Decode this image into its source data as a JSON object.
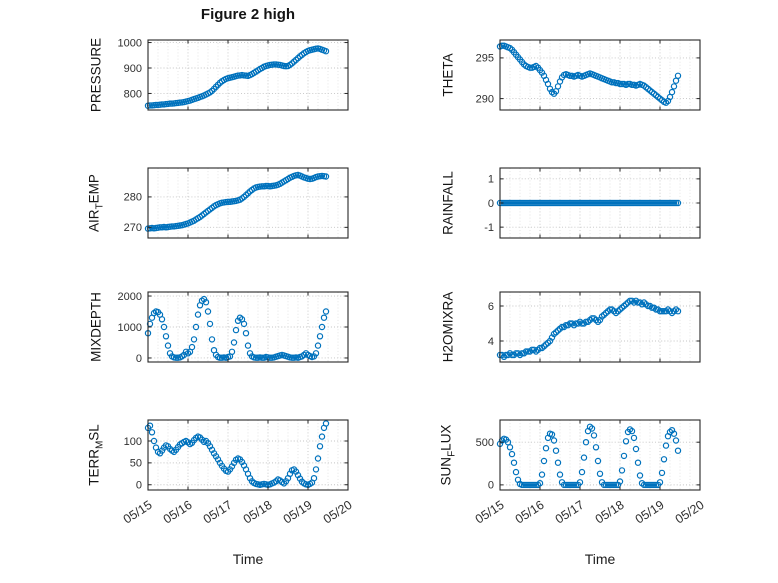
{
  "title": "Figure 2 high",
  "xlabel": "Time",
  "accent_color": "#0072BD",
  "x_tick_labels": [
    "05/15",
    "05/16",
    "05/17",
    "05/18",
    "05/19",
    "05/20"
  ],
  "x_axis": {
    "lim": [
      0,
      5
    ],
    "ticks": [
      0,
      1,
      2,
      3,
      4,
      5
    ],
    "minor_step": 0.25
  },
  "x_days": [
    0,
    0.05,
    0.1,
    0.15,
    0.2,
    0.25,
    0.3,
    0.35,
    0.4,
    0.45,
    0.5,
    0.55,
    0.6,
    0.65,
    0.7,
    0.75,
    0.8,
    0.85,
    0.9,
    0.95,
    1,
    1.05,
    1.1,
    1.15,
    1.2,
    1.25,
    1.3,
    1.35,
    1.4,
    1.45,
    1.5,
    1.55,
    1.6,
    1.65,
    1.7,
    1.75,
    1.8,
    1.85,
    1.9,
    1.95,
    2,
    2.05,
    2.1,
    2.15,
    2.2,
    2.25,
    2.3,
    2.35,
    2.4,
    2.45,
    2.5,
    2.55,
    2.6,
    2.65,
    2.7,
    2.75,
    2.8,
    2.85,
    2.9,
    2.95,
    3,
    3.05,
    3.1,
    3.15,
    3.2,
    3.25,
    3.3,
    3.35,
    3.4,
    3.45,
    3.5,
    3.55,
    3.6,
    3.65,
    3.7,
    3.75,
    3.8,
    3.85,
    3.9,
    3.95,
    4,
    4.05,
    4.1,
    4.15,
    4.2,
    4.25,
    4.3,
    4.35,
    4.4,
    4.45
  ],
  "chart_data": [
    {
      "type": "scatter",
      "marker": "circle-open",
      "label": "PRESSURE",
      "ylabel_parts": {
        "pre": "PRESSURE",
        "sub": "",
        "post": ""
      },
      "ylim": [
        735,
        1010
      ],
      "yticks": [
        800,
        900,
        1000
      ],
      "y": [
        752,
        753,
        753,
        754,
        755,
        755,
        756,
        757,
        757,
        758,
        759,
        760,
        760,
        761,
        762,
        763,
        764,
        765,
        766,
        768,
        770,
        772,
        775,
        778,
        780,
        783,
        786,
        789,
        792,
        796,
        800,
        804,
        810,
        818,
        826,
        834,
        842,
        848,
        853,
        857,
        860,
        862,
        864,
        866,
        868,
        870,
        871,
        872,
        871,
        870,
        869,
        872,
        876,
        881,
        886,
        891,
        896,
        900,
        905,
        908,
        910,
        912,
        913,
        914,
        914,
        913,
        912,
        910,
        908,
        907,
        908,
        912,
        918,
        925,
        932,
        939,
        946,
        952,
        958,
        963,
        967,
        970,
        972,
        974,
        976,
        977,
        975,
        972,
        969,
        966
      ]
    },
    {
      "type": "scatter",
      "marker": "circle-open",
      "label": "THETA",
      "ylabel_parts": {
        "pre": "THETA",
        "sub": "",
        "post": ""
      },
      "ylim": [
        288.6,
        297.2
      ],
      "yticks": [
        290,
        295
      ],
      "y": [
        296.4,
        296.5,
        296.5,
        296.4,
        296.3,
        296.2,
        296.0,
        295.7,
        295.4,
        295.1,
        294.8,
        294.5,
        294.2,
        294.0,
        293.9,
        293.8,
        293.8,
        293.9,
        294.0,
        293.8,
        293.5,
        293.2,
        292.8,
        292.3,
        291.8,
        291.2,
        290.8,
        290.6,
        290.9,
        291.5,
        292.1,
        292.6,
        292.9,
        293.0,
        292.9,
        292.8,
        292.8,
        292.7,
        292.8,
        292.9,
        292.8,
        292.7,
        292.8,
        292.9,
        293.0,
        293.1,
        293.0,
        292.9,
        292.8,
        292.7,
        292.6,
        292.5,
        292.4,
        292.3,
        292.2,
        292.1,
        292.0,
        292.0,
        291.9,
        291.9,
        291.8,
        291.8,
        291.8,
        291.7,
        291.8,
        291.8,
        291.7,
        291.7,
        291.6,
        291.7,
        291.8,
        291.7,
        291.6,
        291.4,
        291.2,
        291.0,
        290.8,
        290.6,
        290.4,
        290.2,
        290.0,
        289.8,
        289.6,
        289.5,
        289.7,
        290.2,
        290.8,
        291.5,
        292.2,
        292.8
      ]
    },
    {
      "type": "scatter",
      "marker": "circle-open",
      "label": "AIR_TEMP",
      "ylabel_parts": {
        "pre": "AIR",
        "sub": "T",
        "post": "EMP"
      },
      "ylim": [
        266.5,
        289.5
      ],
      "yticks": [
        270,
        280
      ],
      "y": [
        269.6,
        269.7,
        269.8,
        269.7,
        269.8,
        269.9,
        270.0,
        270.0,
        270.1,
        270.0,
        270.1,
        270.2,
        270.3,
        270.3,
        270.4,
        270.5,
        270.6,
        270.7,
        270.9,
        271.1,
        271.3,
        271.6,
        271.9,
        272.2,
        272.6,
        273.0,
        273.4,
        273.9,
        274.4,
        274.9,
        275.4,
        275.9,
        276.4,
        276.9,
        277.3,
        277.6,
        277.9,
        278.1,
        278.2,
        278.3,
        278.4,
        278.4,
        278.5,
        278.6,
        278.7,
        278.9,
        279.1,
        279.5,
        280.0,
        280.6,
        281.2,
        281.8,
        282.3,
        282.8,
        283.1,
        283.3,
        283.4,
        283.5,
        283.5,
        283.6,
        283.6,
        283.5,
        283.6,
        283.7,
        283.8,
        284.0,
        284.3,
        284.7,
        285.1,
        285.5,
        285.9,
        286.3,
        286.6,
        286.9,
        287.1,
        287.2,
        287.0,
        286.7,
        286.4,
        286.2,
        286.0,
        285.9,
        286.0,
        286.2,
        286.5,
        286.7,
        286.8,
        286.9,
        286.8,
        286.7
      ]
    },
    {
      "type": "scatter",
      "marker": "circle-open",
      "label": "RAINFALL",
      "ylabel_parts": {
        "pre": "RAINFALL",
        "sub": "",
        "post": ""
      },
      "ylim": [
        -1.45,
        1.45
      ],
      "yticks": [
        -1,
        0,
        1
      ],
      "y": [
        0,
        0,
        0,
        0,
        0,
        0,
        0,
        0,
        0,
        0,
        0,
        0,
        0,
        0,
        0,
        0,
        0,
        0,
        0,
        0,
        0,
        0,
        0,
        0,
        0,
        0,
        0,
        0,
        0,
        0,
        0,
        0,
        0,
        0,
        0,
        0,
        0,
        0,
        0,
        0,
        0,
        0,
        0,
        0,
        0,
        0,
        0,
        0,
        0,
        0,
        0,
        0,
        0,
        0,
        0,
        0,
        0,
        0,
        0,
        0,
        0,
        0,
        0,
        0,
        0,
        0,
        0,
        0,
        0,
        0,
        0,
        0,
        0,
        0,
        0,
        0,
        0,
        0,
        0,
        0,
        0,
        0,
        0,
        0,
        0,
        0,
        0,
        0,
        0,
        0
      ]
    },
    {
      "type": "scatter",
      "marker": "circle-open",
      "label": "MIXDEPTH",
      "ylabel_parts": {
        "pre": "MIXDEPTH",
        "sub": "",
        "post": ""
      },
      "ylim": [
        -130,
        2130
      ],
      "yticks": [
        0,
        1000,
        2000
      ],
      "y": [
        800,
        1100,
        1300,
        1450,
        1500,
        1480,
        1400,
        1250,
        1000,
        700,
        400,
        150,
        50,
        20,
        10,
        10,
        20,
        50,
        100,
        200,
        150,
        200,
        350,
        600,
        1000,
        1400,
        1700,
        1850,
        1900,
        1800,
        1500,
        1100,
        600,
        250,
        100,
        30,
        10,
        10,
        20,
        10,
        30,
        50,
        200,
        500,
        900,
        1200,
        1300,
        1250,
        1100,
        800,
        400,
        150,
        50,
        20,
        10,
        10,
        20,
        10,
        10,
        30,
        20,
        10,
        10,
        20,
        40,
        60,
        80,
        100,
        80,
        60,
        40,
        20,
        10,
        10,
        20,
        10,
        30,
        50,
        100,
        150,
        100,
        60,
        30,
        50,
        150,
        400,
        700,
        1000,
        1300,
        1500
      ]
    },
    {
      "type": "scatter",
      "marker": "circle-open",
      "label": "H2OMIXRA",
      "ylabel_parts": {
        "pre": "H2OMIXRA",
        "sub": "",
        "post": ""
      },
      "ylim": [
        2.8,
        6.8
      ],
      "yticks": [
        4,
        6
      ],
      "y": [
        3.2,
        3.2,
        3.1,
        3.2,
        3.2,
        3.3,
        3.2,
        3.2,
        3.3,
        3.3,
        3.2,
        3.3,
        3.3,
        3.4,
        3.4,
        3.4,
        3.5,
        3.5,
        3.4,
        3.5,
        3.6,
        3.6,
        3.7,
        3.8,
        3.9,
        4.0,
        4.2,
        4.4,
        4.5,
        4.6,
        4.7,
        4.8,
        4.8,
        4.9,
        4.9,
        5.0,
        5.0,
        4.9,
        5.0,
        5.0,
        5.1,
        5.0,
        5.0,
        5.1,
        5.1,
        5.2,
        5.3,
        5.3,
        5.2,
        5.1,
        5.2,
        5.4,
        5.5,
        5.6,
        5.7,
        5.8,
        5.8,
        5.7,
        5.6,
        5.7,
        5.8,
        5.9,
        6.0,
        6.1,
        6.2,
        6.3,
        6.3,
        6.2,
        6.3,
        6.2,
        6.2,
        6.1,
        6.2,
        6.1,
        6.0,
        6.0,
        5.9,
        5.9,
        5.8,
        5.8,
        5.7,
        5.7,
        5.7,
        5.7,
        5.8,
        5.7,
        5.6,
        5.7,
        5.8,
        5.7
      ]
    },
    {
      "type": "scatter",
      "marker": "circle-open",
      "label": "TERR_MSL",
      "ylabel_parts": {
        "pre": "TERR",
        "sub": "M",
        "post": "SL"
      },
      "ylim": [
        -12,
        148
      ],
      "yticks": [
        0,
        50,
        100
      ],
      "y": [
        130,
        135,
        120,
        100,
        85,
        75,
        72,
        78,
        85,
        90,
        88,
        82,
        78,
        75,
        80,
        86,
        92,
        95,
        98,
        100,
        97,
        93,
        96,
        102,
        107,
        110,
        108,
        103,
        98,
        100,
        95,
        88,
        80,
        72,
        65,
        58,
        50,
        43,
        37,
        32,
        30,
        35,
        42,
        50,
        57,
        60,
        58,
        52,
        44,
        35,
        25,
        15,
        8,
        4,
        2,
        1,
        0,
        1,
        2,
        1,
        0,
        1,
        3,
        5,
        8,
        12,
        10,
        6,
        3,
        8,
        15,
        25,
        33,
        35,
        30,
        22,
        14,
        7,
        3,
        1,
        0,
        2,
        5,
        15,
        35,
        60,
        88,
        110,
        130,
        140
      ]
    },
    {
      "type": "scatter",
      "marker": "circle-open",
      "label": "SUN_FLUX",
      "ylabel_parts": {
        "pre": "SUN",
        "sub": "F",
        "post": "LUX"
      },
      "ylim": [
        -60,
        760
      ],
      "yticks": [
        0,
        500
      ],
      "y": [
        480,
        520,
        540,
        530,
        500,
        440,
        360,
        260,
        150,
        60,
        10,
        0,
        0,
        0,
        0,
        0,
        0,
        0,
        0,
        0,
        20,
        120,
        280,
        430,
        550,
        600,
        590,
        520,
        400,
        260,
        120,
        30,
        0,
        0,
        0,
        0,
        0,
        0,
        0,
        0,
        30,
        150,
        320,
        500,
        630,
        680,
        660,
        580,
        440,
        280,
        130,
        30,
        0,
        0,
        0,
        0,
        0,
        0,
        0,
        0,
        40,
        170,
        340,
        510,
        620,
        650,
        630,
        550,
        420,
        260,
        110,
        20,
        0,
        0,
        0,
        0,
        0,
        0,
        0,
        0,
        30,
        140,
        300,
        460,
        570,
        620,
        640,
        600,
        520,
        400
      ]
    }
  ]
}
